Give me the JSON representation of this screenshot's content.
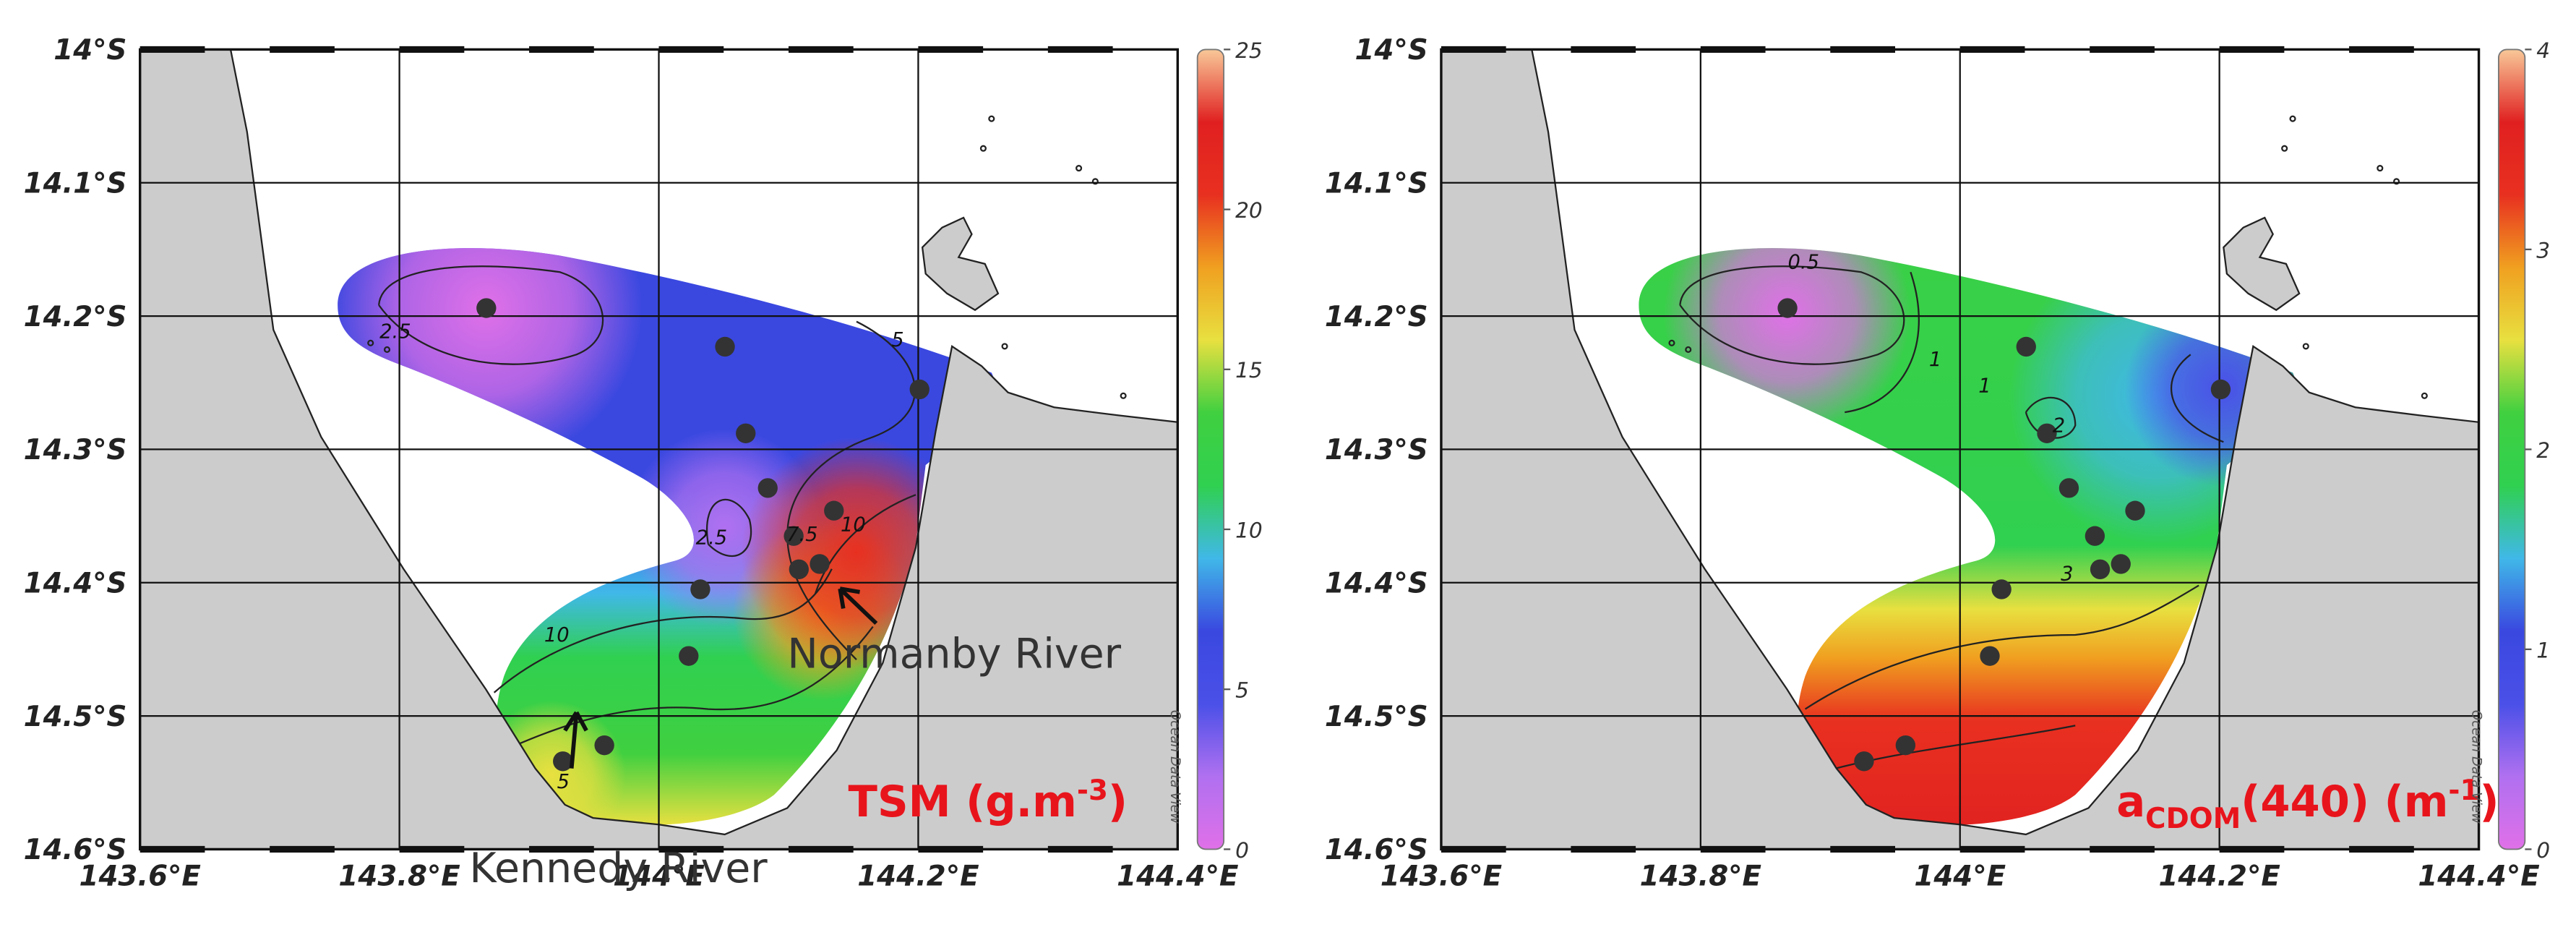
{
  "lonlim": [
    143.6,
    144.4
  ],
  "latlim": [
    14,
    14.6
  ],
  "lon_ticks": [
    {
      "value": 143.6,
      "label": "143.6°E"
    },
    {
      "value": 143.8,
      "label": "143.8°E"
    },
    {
      "value": 144,
      "label": "144°E"
    },
    {
      "value": 144.2,
      "label": "144.2°E"
    },
    {
      "value": 144.4,
      "label": "144.4°E"
    }
  ],
  "lat_ticks": [
    {
      "value": 14,
      "label": "14°S"
    },
    {
      "value": 14.1,
      "label": "14.1°S"
    },
    {
      "value": 14.2,
      "label": "14.2°S"
    },
    {
      "value": 14.3,
      "label": "14.3°S"
    },
    {
      "value": 14.4,
      "label": "14.4°S"
    },
    {
      "value": 14.5,
      "label": "14.5°S"
    },
    {
      "value": 14.6,
      "label": "14.6°S"
    }
  ],
  "grid": true,
  "colormap": [
    "#e070e8",
    "#b070f0",
    "#4a50e8",
    "#3a48e0",
    "#40b8e8",
    "#30d050",
    "#40d040",
    "#e8e040",
    "#f0a020",
    "#e83020",
    "#e02020",
    "#f8c898"
  ],
  "stations": [
    {
      "lon": 143.867,
      "lat": 14.194
    },
    {
      "lon": 144.051,
      "lat": 14.223
    },
    {
      "lon": 144.067,
      "lat": 14.288
    },
    {
      "lon": 144.084,
      "lat": 14.329
    },
    {
      "lon": 144.201,
      "lat": 14.255
    },
    {
      "lon": 144.135,
      "lat": 14.346
    },
    {
      "lon": 144.104,
      "lat": 14.365
    },
    {
      "lon": 144.108,
      "lat": 14.39
    },
    {
      "lon": 144.124,
      "lat": 14.386
    },
    {
      "lon": 144.032,
      "lat": 14.405
    },
    {
      "lon": 144.023,
      "lat": 14.455
    },
    {
      "lon": 143.926,
      "lat": 14.534
    },
    {
      "lon": 143.958,
      "lat": 14.522
    }
  ],
  "watermark": "Ocean Data View",
  "panels": [
    {
      "label": [
        {
          "text": "TSM (g.m"
        },
        {
          "text": "-3",
          "shift": "super"
        },
        {
          "text": ")"
        }
      ],
      "colorbar": {
        "lim": [
          0,
          25
        ],
        "ticks": [
          0,
          5,
          10,
          15,
          20,
          25
        ]
      },
      "contour_labels": [
        "2.5",
        "5",
        "7.5",
        "10",
        "10",
        "5",
        "2.5"
      ],
      "annotations": [
        "Normanby River",
        "Kennedy River"
      ]
    },
    {
      "label": [
        {
          "text": "a"
        },
        {
          "text": "CDOM",
          "shift": "sub"
        },
        {
          "text": "(440) (m"
        },
        {
          "text": "-1",
          "shift": "super"
        },
        {
          "text": ")"
        }
      ],
      "colorbar": {
        "lim": [
          0,
          4
        ],
        "ticks": [
          0,
          1,
          2,
          3,
          4
        ]
      },
      "contour_labels": [
        "0.5",
        "1",
        "2",
        "1",
        "3"
      ],
      "annotations": []
    }
  ]
}
